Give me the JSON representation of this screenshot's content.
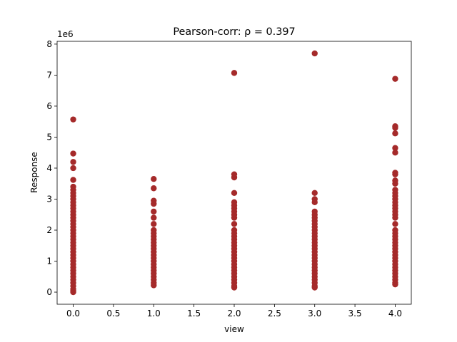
{
  "chart_data": {
    "type": "scatter",
    "title": "Pearson-corr: ρ = 0.397",
    "xlabel": "view",
    "ylabel": "Response",
    "y_offset_label": "1e6",
    "color": "#a52a2a",
    "xlim": [
      -0.2,
      4.2
    ],
    "ylim": [
      -0.39,
      8.09
    ],
    "xticks": [
      {
        "value": 0,
        "label": "0.0"
      },
      0.5,
      {
        "value": 1,
        "label": "1.0"
      },
      1.5,
      {
        "value": 2,
        "label": "2.0"
      },
      2.5,
      {
        "value": 3,
        "label": "3.0"
      },
      3.5,
      {
        "value": 4,
        "label": "4.0"
      }
    ],
    "yticks": [
      0,
      1,
      2,
      3,
      4,
      5,
      6,
      7,
      8
    ],
    "x": [
      0,
      0,
      0,
      0,
      0,
      0,
      0,
      0,
      0,
      0,
      0,
      0,
      0,
      0,
      0,
      0,
      0,
      0,
      0,
      0,
      0,
      0,
      0,
      0,
      0,
      0,
      0,
      0,
      0,
      0,
      0,
      0,
      0,
      0,
      0,
      0,
      0,
      0,
      0,
      0,
      0,
      1,
      1,
      1,
      1,
      1,
      1,
      1,
      1,
      1,
      1,
      1,
      1,
      1,
      1,
      1,
      1,
      1,
      1,
      1,
      1,
      1,
      1,
      1,
      1,
      1,
      1,
      2,
      2,
      2,
      2,
      2,
      2,
      2,
      2,
      2,
      2,
      2,
      2,
      2,
      2,
      2,
      2,
      2,
      2,
      2,
      2,
      2,
      2,
      2,
      2,
      2,
      2,
      2,
      2,
      2,
      2,
      2,
      3,
      3,
      3,
      3,
      3,
      3,
      3,
      3,
      3,
      3,
      3,
      3,
      3,
      3,
      3,
      3,
      3,
      3,
      3,
      3,
      3,
      3,
      3,
      3,
      3,
      3,
      3,
      3,
      3,
      3,
      4,
      4,
      4,
      4,
      4,
      4,
      4,
      4,
      4,
      4,
      4,
      4,
      4,
      4,
      4,
      4,
      4,
      4,
      4,
      4,
      4,
      4,
      4,
      4,
      4,
      4,
      4,
      4,
      4,
      4,
      4,
      4,
      4,
      4,
      4,
      4,
      4,
      4,
      4,
      4
    ],
    "values": [
      5.57,
      4.47,
      4.2,
      4.0,
      3.62,
      3.4,
      3.3,
      3.2,
      3.1,
      3.0,
      2.9,
      2.8,
      2.7,
      2.6,
      2.5,
      2.4,
      2.3,
      2.2,
      2.1,
      2.0,
      1.9,
      1.8,
      1.7,
      1.6,
      1.5,
      1.4,
      1.3,
      1.2,
      1.1,
      1.0,
      0.9,
      0.8,
      0.7,
      0.6,
      0.5,
      0.4,
      0.3,
      0.2,
      0.1,
      0.05,
      0.0,
      3.65,
      3.35,
      2.95,
      2.85,
      2.6,
      2.4,
      2.2,
      2.0,
      1.9,
      1.8,
      1.7,
      1.6,
      1.5,
      1.4,
      1.3,
      1.2,
      1.1,
      1.0,
      0.9,
      0.8,
      0.7,
      0.6,
      0.5,
      0.4,
      0.3,
      0.22,
      7.07,
      3.8,
      3.7,
      3.2,
      2.9,
      2.8,
      2.7,
      2.6,
      2.5,
      2.4,
      2.2,
      2.0,
      1.9,
      1.8,
      1.7,
      1.6,
      1.5,
      1.4,
      1.3,
      1.2,
      1.1,
      1.0,
      0.9,
      0.8,
      0.7,
      0.6,
      0.5,
      0.4,
      0.3,
      0.2,
      0.15,
      7.7,
      3.2,
      3.0,
      2.9,
      2.6,
      2.5,
      2.4,
      2.3,
      2.2,
      2.1,
      2.0,
      1.9,
      1.8,
      1.7,
      1.6,
      1.5,
      1.4,
      1.3,
      1.2,
      1.1,
      1.0,
      0.9,
      0.8,
      0.7,
      0.6,
      0.5,
      0.4,
      0.3,
      0.2,
      0.15,
      6.88,
      5.35,
      5.3,
      5.12,
      4.65,
      4.5,
      3.85,
      3.8,
      3.6,
      3.5,
      3.3,
      3.2,
      3.1,
      3.0,
      2.9,
      2.8,
      2.7,
      2.6,
      2.5,
      2.4,
      2.2,
      2.0,
      1.9,
      1.8,
      1.7,
      1.6,
      1.5,
      1.4,
      1.3,
      1.2,
      1.1,
      1.0,
      0.9,
      0.8,
      0.7,
      0.6,
      0.5,
      0.4,
      0.3,
      0.25
    ]
  }
}
